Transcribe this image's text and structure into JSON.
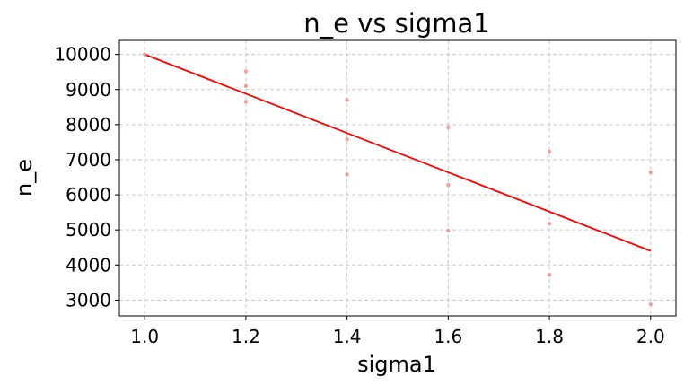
{
  "chart_data": {
    "type": "scatter",
    "title": "n_e vs sigma1",
    "xlabel": "sigma1",
    "ylabel": "n_e",
    "xlim": [
      0.95,
      2.05
    ],
    "ylim": [
      2550,
      10400
    ],
    "grid": true,
    "xticks": [
      1.0,
      1.2,
      1.4,
      1.6,
      1.8,
      2.0
    ],
    "xtick_labels": [
      "1.0",
      "1.2",
      "1.4",
      "1.6",
      "1.8",
      "2.0"
    ],
    "yticks": [
      3000,
      4000,
      5000,
      6000,
      7000,
      8000,
      9000,
      10000
    ],
    "ytick_labels": [
      "3000",
      "4000",
      "5000",
      "6000",
      "7000",
      "8000",
      "9000",
      "10000"
    ],
    "points": [
      {
        "x": 1.0,
        "y": 10000
      },
      {
        "x": 1.2,
        "y": 9520
      },
      {
        "x": 1.2,
        "y": 9100
      },
      {
        "x": 1.2,
        "y": 8650
      },
      {
        "x": 1.4,
        "y": 8700
      },
      {
        "x": 1.4,
        "y": 7580
      },
      {
        "x": 1.4,
        "y": 6580
      },
      {
        "x": 1.6,
        "y": 7920
      },
      {
        "x": 1.6,
        "y": 6280
      },
      {
        "x": 1.6,
        "y": 4980
      },
      {
        "x": 1.8,
        "y": 7230
      },
      {
        "x": 1.8,
        "y": 5180
      },
      {
        "x": 1.8,
        "y": 3720
      },
      {
        "x": 2.0,
        "y": 6640
      },
      {
        "x": 2.0,
        "y": 2880
      }
    ],
    "fit_line": {
      "x": [
        1.0,
        2.0
      ],
      "y": [
        10000,
        4400
      ]
    },
    "colors": {
      "points": "#f0938a",
      "fit_line": "#ff0000"
    }
  }
}
